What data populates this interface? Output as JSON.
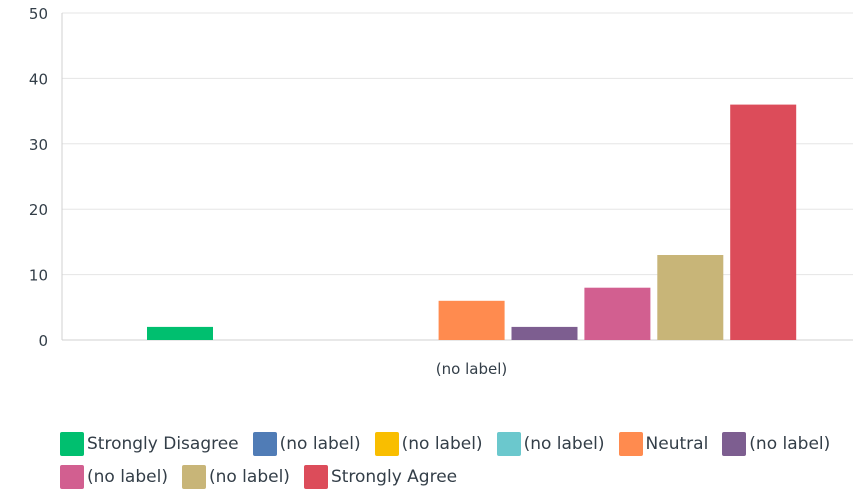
{
  "chart_data": {
    "type": "bar",
    "categories": [
      "(no label)"
    ],
    "ylim": [
      0,
      50
    ],
    "yticks": [
      0,
      10,
      20,
      30,
      40,
      50
    ],
    "grid": true,
    "legend_position": "bottom",
    "series": [
      {
        "name": "Strongly Disagree",
        "values": [
          2
        ],
        "color": "#00bf6f"
      },
      {
        "name": "(no label)",
        "values": [
          0
        ],
        "color": "#507cb6"
      },
      {
        "name": "(no label)",
        "values": [
          0
        ],
        "color": "#f9be00"
      },
      {
        "name": "(no label)",
        "values": [
          0
        ],
        "color": "#6bc8cd"
      },
      {
        "name": "Neutral",
        "values": [
          6
        ],
        "color": "#ff8b4f"
      },
      {
        "name": "(no label)",
        "values": [
          2
        ],
        "color": "#7d5e90"
      },
      {
        "name": "(no label)",
        "values": [
          8
        ],
        "color": "#d25f90"
      },
      {
        "name": "(no label)",
        "values": [
          13
        ],
        "color": "#c8b578"
      },
      {
        "name": "Strongly Agree",
        "values": [
          36
        ],
        "color": "#dc4c5a"
      }
    ]
  }
}
